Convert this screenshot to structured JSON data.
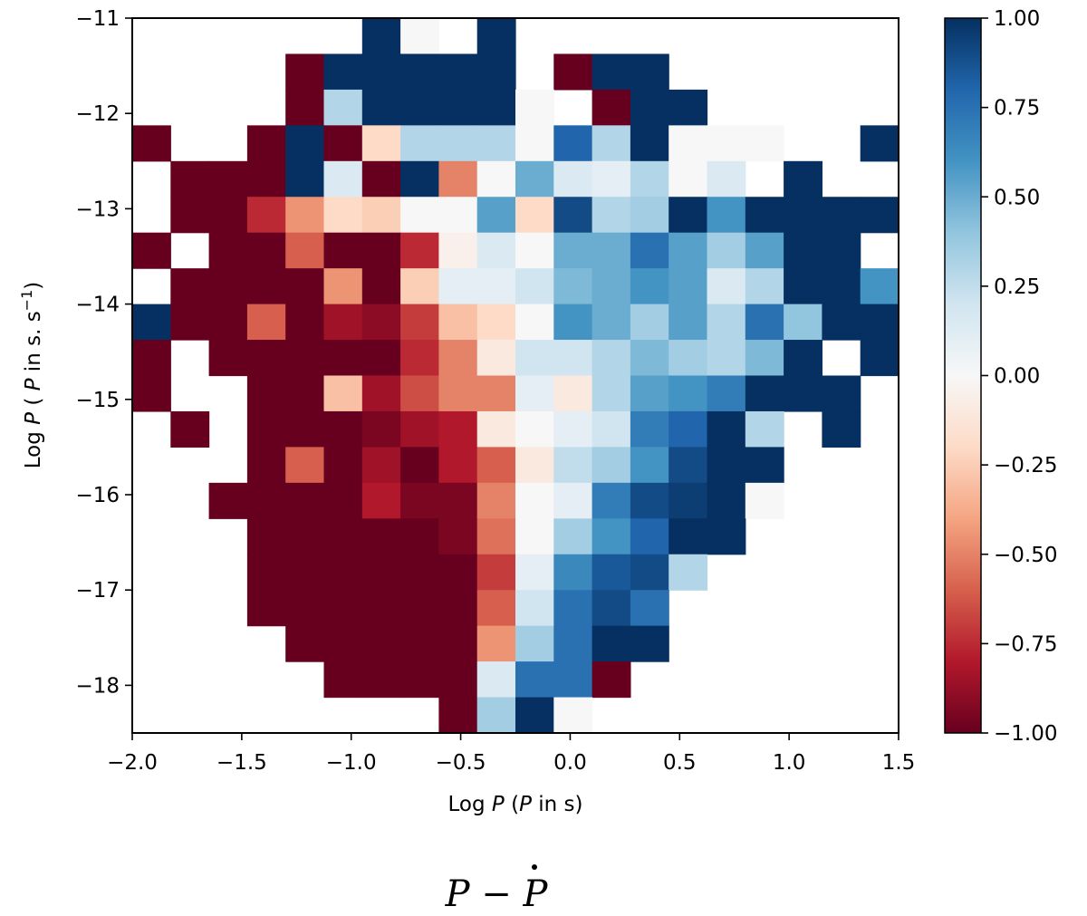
{
  "chart_data": {
    "type": "heatmap",
    "title": "",
    "caption": "P − Ṗ",
    "caption_parts": {
      "p": "P",
      "minus": " − ",
      "pdot": "P"
    },
    "xlabel_parts": {
      "pre": "Log ",
      "var": "P",
      "post1": " (",
      "var2": "P",
      "post2": " in s)"
    },
    "ylabel_parts": {
      "pre": "Log ",
      "var": "P",
      "mid1": " ( ",
      "var2": "P",
      "mid2": " in s. s",
      "sup": "−1",
      "end": ")"
    },
    "xlim": [
      -2.0,
      1.5
    ],
    "ylim": [
      -18.5,
      -11.0
    ],
    "x_ticks": [
      -2.0,
      -1.5,
      -1.0,
      -0.5,
      0.0,
      0.5,
      1.0,
      1.5
    ],
    "x_tick_labels": [
      "−2.0",
      "−1.5",
      "−1.0",
      "−0.5",
      "0.0",
      "0.5",
      "1.0",
      "1.5"
    ],
    "y_ticks": [
      -11,
      -12,
      -13,
      -14,
      -15,
      -16,
      -17,
      -18
    ],
    "y_tick_labels": [
      "−11",
      "−12",
      "−13",
      "−14",
      "−15",
      "−16",
      "−17",
      "−18"
    ],
    "x_bins": 20,
    "y_bins": 19,
    "colorbar": {
      "cmap": "RdBu",
      "range": [
        -1.0,
        1.0
      ],
      "ticks": [
        1.0,
        0.75,
        0.5,
        0.25,
        0.0,
        -0.25,
        -0.5,
        -0.75,
        -1.0
      ],
      "tick_labels": [
        "1.00",
        "0.75",
        "0.50",
        "0.25",
        "0.00",
        "−0.25",
        "−0.50",
        "−0.75",
        "−1.00"
      ]
    },
    "values": [
      [
        null,
        null,
        null,
        null,
        null,
        null,
        1,
        0,
        null,
        1,
        null,
        null,
        null,
        null,
        null,
        null,
        null,
        null,
        null,
        null
      ],
      [
        null,
        null,
        null,
        null,
        -1,
        1,
        1,
        1,
        1,
        1,
        null,
        -1,
        1,
        1,
        null,
        null,
        null,
        null,
        null,
        null
      ],
      [
        null,
        null,
        null,
        null,
        -1,
        0.3,
        1,
        1,
        1,
        1,
        0,
        null,
        -1,
        1,
        1,
        null,
        null,
        null,
        null,
        null
      ],
      [
        -1,
        null,
        null,
        -1,
        1,
        -1,
        -0.2,
        0.3,
        0.3,
        0.3,
        0,
        0.8,
        0.3,
        1,
        0,
        0,
        0,
        null,
        null,
        1
      ],
      [
        null,
        -1,
        -1,
        -1,
        1,
        0.15,
        -1,
        1,
        -0.5,
        0,
        0.5,
        0.15,
        0.1,
        0.3,
        0,
        0.15,
        null,
        1,
        null,
        null
      ],
      [
        null,
        -1,
        -1,
        -0.75,
        -0.45,
        -0.2,
        -0.25,
        0,
        0,
        0.55,
        -0.2,
        0.9,
        0.3,
        0.35,
        1,
        0.6,
        1,
        1,
        1,
        1
      ],
      [
        -1,
        null,
        -1,
        -1,
        -0.6,
        -1,
        -1,
        -0.75,
        -0.05,
        0.15,
        0,
        0.5,
        0.5,
        0.75,
        0.55,
        0.35,
        0.55,
        1,
        1,
        null
      ],
      [
        null,
        -1,
        -1,
        -1,
        -1,
        -0.45,
        -1,
        -0.25,
        0.1,
        0.1,
        0.2,
        0.45,
        0.5,
        0.6,
        0.55,
        0.15,
        0.3,
        1,
        1,
        0.6
      ],
      [
        1,
        -1,
        -1,
        -0.6,
        -1,
        -0.85,
        -0.9,
        -0.7,
        -0.3,
        -0.2,
        0,
        0.6,
        0.5,
        0.35,
        0.55,
        0.3,
        0.75,
        0.4,
        1,
        1
      ],
      [
        -1,
        null,
        -1,
        -1,
        -1,
        -1,
        -1,
        -0.75,
        -0.5,
        -0.1,
        0.2,
        0.2,
        0.3,
        0.45,
        0.35,
        0.3,
        0.45,
        1,
        null,
        1
      ],
      [
        -1,
        null,
        null,
        -1,
        -1,
        -0.3,
        -0.85,
        -0.65,
        -0.5,
        -0.5,
        0.1,
        -0.1,
        0.3,
        0.55,
        0.6,
        0.7,
        1,
        1,
        1,
        null
      ],
      [
        null,
        -1,
        null,
        -1,
        -1,
        -1,
        -0.95,
        -0.85,
        -0.8,
        -0.1,
        0,
        0.1,
        0.2,
        0.7,
        0.8,
        1,
        0.3,
        null,
        1,
        null
      ],
      [
        null,
        null,
        null,
        -1,
        -0.6,
        -1,
        -0.85,
        -1,
        -0.8,
        -0.6,
        -0.1,
        0.25,
        0.35,
        0.6,
        0.9,
        1,
        1,
        null,
        null,
        null
      ],
      [
        null,
        null,
        -1,
        -1,
        -1,
        -1,
        -0.8,
        -0.95,
        -0.95,
        -0.5,
        0,
        0.1,
        0.7,
        0.9,
        0.95,
        1,
        0,
        null,
        null,
        null
      ],
      [
        null,
        null,
        null,
        -1,
        -1,
        -1,
        -1,
        -1,
        -0.95,
        -0.55,
        0,
        0.35,
        0.6,
        0.8,
        1,
        1,
        null,
        null,
        null,
        null
      ],
      [
        null,
        null,
        null,
        -1,
        -1,
        -1,
        -1,
        -1,
        -1,
        -0.7,
        0.1,
        0.65,
        0.85,
        0.9,
        0.3,
        null,
        null,
        null,
        null,
        null
      ],
      [
        null,
        null,
        null,
        -1,
        -1,
        -1,
        -1,
        -1,
        -1,
        -0.6,
        0.2,
        0.75,
        0.9,
        0.75,
        null,
        null,
        null,
        null,
        null,
        null
      ],
      [
        null,
        null,
        null,
        null,
        -1,
        -1,
        -1,
        -1,
        -1,
        -0.45,
        0.35,
        0.75,
        1,
        1,
        null,
        null,
        null,
        null,
        null,
        null
      ],
      [
        null,
        null,
        null,
        null,
        null,
        -1,
        -1,
        -1,
        -1,
        0.15,
        0.75,
        0.75,
        -1,
        null,
        null,
        null,
        null,
        null,
        null,
        null
      ]
    ],
    "bottom_row_values": [
      null,
      null,
      null,
      null,
      null,
      null,
      null,
      null,
      -1,
      0.35,
      1,
      0,
      null,
      null,
      null,
      null,
      null,
      null,
      null,
      null
    ]
  }
}
